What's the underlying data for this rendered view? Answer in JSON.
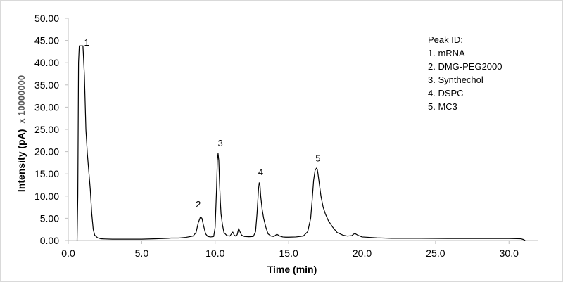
{
  "chart_data": {
    "type": "line",
    "xlabel": "Time (min)",
    "ylabel": "Intensity (pA)",
    "y_multiplier": "x 10000000",
    "xlim": [
      0,
      32
    ],
    "ylim": [
      0,
      50
    ],
    "x_ticks": [
      "0.0",
      "5.0",
      "10.0",
      "15.0",
      "20.0",
      "25.0",
      "30.0"
    ],
    "y_ticks": [
      "0.00",
      "5.00",
      "10.00",
      "15.00",
      "20.00",
      "25.00",
      "30.00",
      "35.00",
      "40.00",
      "45.00",
      "50.00"
    ],
    "grid": false,
    "legend": {
      "title": "Peak ID:",
      "items": [
        "1. mRNA",
        "2. DMG-PEG2000",
        "3. Synthechol",
        "4. DSPC",
        "5. MC3"
      ],
      "position": "top-right"
    },
    "peak_labels": [
      {
        "text": "1",
        "x": 1.25,
        "y": 43.8
      },
      {
        "text": "2",
        "x": 8.85,
        "y": 7.4
      },
      {
        "text": "3",
        "x": 10.35,
        "y": 21.2
      },
      {
        "text": "4",
        "x": 13.1,
        "y": 14.7
      },
      {
        "text": "5",
        "x": 17.0,
        "y": 17.8
      }
    ],
    "series": [
      {
        "x": [
          0.6,
          0.65,
          0.7,
          0.75,
          0.8,
          0.9,
          1.0,
          1.1,
          1.2,
          1.3,
          1.4,
          1.5,
          1.6,
          1.7,
          1.8,
          2.0,
          2.2,
          2.5,
          3.0,
          4.0,
          5.0,
          6.0,
          6.8,
          7.0,
          7.5,
          8.0,
          8.5,
          8.7,
          8.85,
          9.0,
          9.1,
          9.2,
          9.35,
          9.5,
          9.7,
          9.9,
          10.0,
          10.1,
          10.15,
          10.2,
          10.25,
          10.3,
          10.35,
          10.4,
          10.5,
          10.6,
          10.8,
          11.0,
          11.2,
          11.3,
          11.4,
          11.5,
          11.6,
          11.7,
          11.8,
          12.0,
          12.3,
          12.6,
          12.75,
          12.85,
          12.95,
          13.0,
          13.05,
          13.1,
          13.2,
          13.3,
          13.45,
          13.6,
          13.8,
          14.0,
          14.2,
          14.4,
          14.6,
          14.8,
          15.0,
          15.5,
          16.0,
          16.3,
          16.5,
          16.6,
          16.7,
          16.8,
          16.9,
          16.95,
          17.0,
          17.1,
          17.2,
          17.35,
          17.5,
          17.7,
          18.0,
          18.3,
          18.7,
          19.0,
          19.3,
          19.5,
          19.7,
          20.0,
          21.0,
          22.0,
          24.0,
          26.0,
          28.0,
          30.0,
          30.8,
          31.0,
          31.1
        ],
        "y": [
          0.0,
          10.0,
          40.0,
          43.8,
          43.8,
          43.8,
          43.8,
          37.0,
          25.0,
          19.5,
          15.5,
          11.5,
          6.0,
          2.5,
          1.2,
          0.6,
          0.4,
          0.35,
          0.3,
          0.3,
          0.3,
          0.4,
          0.5,
          0.55,
          0.55,
          0.7,
          1.0,
          1.8,
          4.0,
          5.3,
          5.0,
          3.5,
          1.5,
          0.9,
          0.8,
          0.9,
          3.0,
          12.0,
          18.0,
          19.6,
          18.0,
          13.0,
          9.0,
          6.0,
          3.5,
          1.8,
          1.1,
          1.0,
          1.9,
          1.2,
          1.0,
          1.3,
          2.7,
          1.9,
          1.2,
          0.9,
          0.85,
          0.9,
          2.0,
          6.0,
          11.5,
          13.0,
          12.5,
          10.0,
          7.0,
          5.0,
          3.0,
          1.5,
          1.0,
          0.9,
          1.4,
          1.0,
          0.8,
          0.75,
          0.75,
          0.8,
          1.0,
          2.0,
          5.0,
          9.0,
          13.5,
          15.8,
          16.3,
          16.0,
          15.0,
          12.5,
          10.0,
          7.5,
          6.0,
          4.5,
          3.0,
          1.8,
          1.2,
          1.0,
          1.1,
          1.6,
          1.2,
          0.8,
          0.6,
          0.5,
          0.5,
          0.45,
          0.45,
          0.45,
          0.4,
          0.2,
          0.0
        ]
      }
    ]
  }
}
